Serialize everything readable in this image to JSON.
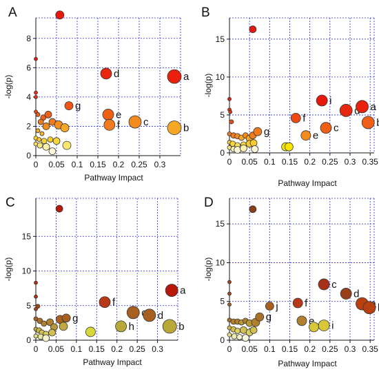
{
  "figure": {
    "background": "#ffffff",
    "grid_color": "#2a2ad8",
    "axis_color": "#111111"
  },
  "chart_data": [
    {
      "type": "scatter",
      "panel_label": "A",
      "xlabel": "Pathway Impact",
      "ylabel": "-log(p)",
      "xlim": [
        0,
        0.35
      ],
      "ylim": [
        0,
        9.4
      ],
      "xticks": [
        "0",
        "0.05",
        "0.1",
        "0.15",
        "0.2",
        "0.25",
        "0.3"
      ],
      "xtick_values": [
        0,
        0.05,
        0.1,
        0.15,
        0.2,
        0.25,
        0.3
      ],
      "yticks": [
        "0",
        "2",
        "4",
        "6",
        "8"
      ],
      "ytick_values": [
        0,
        2,
        4,
        6,
        8
      ],
      "grid": true,
      "points": [
        {
          "x": 0.058,
          "y": 9.6,
          "r": 6,
          "color": "#e8180c",
          "label": ""
        },
        {
          "x": 0.0,
          "y": 6.6,
          "r": 2.5,
          "color": "#e8180c",
          "label": ""
        },
        {
          "x": 0.0,
          "y": 4.3,
          "r": 2.5,
          "color": "#e83010",
          "label": ""
        },
        {
          "x": 0.0,
          "y": 4.0,
          "r": 2.5,
          "color": "#e83010",
          "label": ""
        },
        {
          "x": 0.0,
          "y": 3.0,
          "r": 2.5,
          "color": "#ec4a12",
          "label": ""
        },
        {
          "x": 0.005,
          "y": 2.8,
          "r": 3,
          "color": "#ef6016",
          "label": ""
        },
        {
          "x": 0.018,
          "y": 2.6,
          "r": 4,
          "color": "#ef6016",
          "label": ""
        },
        {
          "x": 0.03,
          "y": 2.8,
          "r": 5,
          "color": "#ef6016",
          "label": ""
        },
        {
          "x": 0.012,
          "y": 2.3,
          "r": 4,
          "color": "#f07a1c",
          "label": ""
        },
        {
          "x": 0.025,
          "y": 2.0,
          "r": 5,
          "color": "#f28a1e",
          "label": ""
        },
        {
          "x": 0.04,
          "y": 2.3,
          "r": 5,
          "color": "#f07a1c",
          "label": ""
        },
        {
          "x": 0.005,
          "y": 1.7,
          "r": 3,
          "color": "#f5a825",
          "label": ""
        },
        {
          "x": 0.015,
          "y": 1.5,
          "r": 3,
          "color": "#f5b52a",
          "label": ""
        },
        {
          "x": 0.0,
          "y": 1.2,
          "r": 3,
          "color": "#f8cc30",
          "label": ""
        },
        {
          "x": 0.008,
          "y": 1.1,
          "r": 3,
          "color": "#f8cc30",
          "label": ""
        },
        {
          "x": 0.02,
          "y": 1.0,
          "r": 4,
          "color": "#f9d63a",
          "label": ""
        },
        {
          "x": 0.035,
          "y": 1.1,
          "r": 4,
          "color": "#f8cc30",
          "label": ""
        },
        {
          "x": 0.05,
          "y": 1.0,
          "r": 5,
          "color": "#f9d63a",
          "label": ""
        },
        {
          "x": 0.0,
          "y": 0.8,
          "r": 3,
          "color": "#fbe060",
          "label": ""
        },
        {
          "x": 0.01,
          "y": 0.7,
          "r": 4,
          "color": "#fce880",
          "label": ""
        },
        {
          "x": 0.025,
          "y": 0.6,
          "r": 5,
          "color": "#fdf2b0",
          "label": ""
        },
        {
          "x": 0.04,
          "y": 0.3,
          "r": 5,
          "color": "#fef8d8",
          "label": ""
        },
        {
          "x": 0.055,
          "y": 2.1,
          "r": 6,
          "color": "#f2901e",
          "label": ""
        },
        {
          "x": 0.07,
          "y": 1.9,
          "r": 6,
          "color": "#f5a825",
          "label": ""
        },
        {
          "x": 0.075,
          "y": 0.7,
          "r": 6,
          "color": "#fbe570",
          "label": ""
        },
        {
          "x": 0.08,
          "y": 3.4,
          "r": 6,
          "color": "#ef5514",
          "label": "g"
        },
        {
          "x": 0.17,
          "y": 5.6,
          "r": 8,
          "color": "#e8280e",
          "label": "d"
        },
        {
          "x": 0.175,
          "y": 2.8,
          "r": 8,
          "color": "#ef6016",
          "label": "e"
        },
        {
          "x": 0.178,
          "y": 2.1,
          "r": 8,
          "color": "#f07a1c",
          "label": "f"
        },
        {
          "x": 0.24,
          "y": 2.3,
          "r": 9,
          "color": "#f28a1e",
          "label": "c"
        },
        {
          "x": 0.335,
          "y": 5.4,
          "r": 10,
          "color": "#e8200c",
          "label": "a"
        },
        {
          "x": 0.335,
          "y": 1.9,
          "r": 10,
          "color": "#f5a825",
          "label": "b"
        }
      ]
    },
    {
      "type": "scatter",
      "panel_label": "B",
      "xlabel": "Pathway Impact",
      "ylabel": "-log(p)",
      "xlim": [
        0,
        0.36
      ],
      "ylim": [
        0,
        17.8
      ],
      "xticks": [
        "0",
        "0.05",
        "0.1",
        "0.15",
        "0.2",
        "0.25",
        "0.3",
        "0.35"
      ],
      "xtick_values": [
        0,
        0.05,
        0.1,
        0.15,
        0.2,
        0.25,
        0.3,
        0.35
      ],
      "yticks": [
        "0",
        "5",
        "10",
        "15"
      ],
      "ytick_values": [
        0,
        5,
        10,
        15
      ],
      "grid": true,
      "points": [
        {
          "x": 0.058,
          "y": 16.3,
          "r": 5,
          "color": "#e8180c",
          "label": ""
        },
        {
          "x": 0.0,
          "y": 7.1,
          "r": 2.5,
          "color": "#e8180c",
          "label": ""
        },
        {
          "x": 0.0,
          "y": 5.7,
          "r": 2.5,
          "color": "#e83010",
          "label": ""
        },
        {
          "x": 0.002,
          "y": 5.4,
          "r": 2.5,
          "color": "#e83010",
          "label": ""
        },
        {
          "x": 0.005,
          "y": 4.1,
          "r": 3,
          "color": "#ec4a12",
          "label": ""
        },
        {
          "x": 0.0,
          "y": 2.5,
          "r": 3,
          "color": "#f07a1c",
          "label": ""
        },
        {
          "x": 0.01,
          "y": 2.3,
          "r": 4,
          "color": "#f07a1c",
          "label": ""
        },
        {
          "x": 0.02,
          "y": 2.2,
          "r": 4,
          "color": "#f28a1e",
          "label": ""
        },
        {
          "x": 0.03,
          "y": 2.0,
          "r": 4,
          "color": "#f5a825",
          "label": ""
        },
        {
          "x": 0.04,
          "y": 2.3,
          "r": 4,
          "color": "#f28a1e",
          "label": ""
        },
        {
          "x": 0.05,
          "y": 1.9,
          "r": 5,
          "color": "#f5a825",
          "label": ""
        },
        {
          "x": 0.058,
          "y": 2.3,
          "r": 5,
          "color": "#f07a1c",
          "label": ""
        },
        {
          "x": 0.0,
          "y": 1.4,
          "r": 3,
          "color": "#f8cc30",
          "label": ""
        },
        {
          "x": 0.008,
          "y": 1.2,
          "r": 4,
          "color": "#f9d63a",
          "label": ""
        },
        {
          "x": 0.02,
          "y": 1.0,
          "r": 4,
          "color": "#fbe060",
          "label": ""
        },
        {
          "x": 0.035,
          "y": 1.1,
          "r": 4,
          "color": "#f9d63a",
          "label": ""
        },
        {
          "x": 0.05,
          "y": 1.2,
          "r": 5,
          "color": "#f8cc30",
          "label": ""
        },
        {
          "x": 0.06,
          "y": 1.3,
          "r": 5,
          "color": "#f8cc30",
          "label": ""
        },
        {
          "x": 0.0,
          "y": 0.7,
          "r": 3,
          "color": "#fce880",
          "label": ""
        },
        {
          "x": 0.01,
          "y": 0.5,
          "r": 4,
          "color": "#fdf2b0",
          "label": ""
        },
        {
          "x": 0.02,
          "y": 0.4,
          "r": 5,
          "color": "#fef8d8",
          "label": ""
        },
        {
          "x": 0.035,
          "y": 0.6,
          "r": 5,
          "color": "#fdf2b0",
          "label": ""
        },
        {
          "x": 0.063,
          "y": 0.5,
          "r": 5,
          "color": "#fef8d8",
          "label": ""
        },
        {
          "x": 0.07,
          "y": 2.8,
          "r": 6,
          "color": "#f07a1c",
          "label": "g"
        },
        {
          "x": 0.14,
          "y": 0.8,
          "r": 6,
          "color": "#f9e400",
          "label": ""
        },
        {
          "x": 0.148,
          "y": 0.8,
          "r": 6,
          "color": "#f9e400",
          "label": ""
        },
        {
          "x": 0.165,
          "y": 4.6,
          "r": 7,
          "color": "#ec4a12",
          "label": "f"
        },
        {
          "x": 0.19,
          "y": 2.3,
          "r": 7,
          "color": "#f28a1e",
          "label": "e"
        },
        {
          "x": 0.23,
          "y": 6.9,
          "r": 8,
          "color": "#e8180c",
          "label": "i"
        },
        {
          "x": 0.24,
          "y": 3.3,
          "r": 8,
          "color": "#ef6016",
          "label": "c"
        },
        {
          "x": 0.29,
          "y": 5.6,
          "r": 9,
          "color": "#e8280e",
          "label": "d"
        },
        {
          "x": 0.33,
          "y": 6.1,
          "r": 9,
          "color": "#e8200c",
          "label": "a"
        },
        {
          "x": 0.345,
          "y": 4.0,
          "r": 9,
          "color": "#ef6016",
          "label": "b"
        }
      ]
    },
    {
      "type": "scatter",
      "panel_label": "C",
      "xlabel": "Pathway Impact",
      "ylabel": "-log(p)",
      "xlim": [
        0,
        0.35
      ],
      "ylim": [
        0,
        20.5
      ],
      "xticks": [
        "0",
        "0.05",
        "0.1",
        "0.15",
        "0.2",
        "0.25",
        "0.3"
      ],
      "xtick_values": [
        0,
        0.05,
        0.1,
        0.15,
        0.2,
        0.25,
        0.3
      ],
      "yticks": [
        "0",
        "5",
        "10",
        "15"
      ],
      "ytick_values": [
        0,
        5,
        10,
        15
      ],
      "grid": true,
      "points": [
        {
          "x": 0.058,
          "y": 19.0,
          "r": 5,
          "color": "#b81808",
          "label": ""
        },
        {
          "x": 0.0,
          "y": 8.3,
          "r": 2.5,
          "color": "#b03010",
          "label": ""
        },
        {
          "x": 0.0,
          "y": 6.3,
          "r": 2.5,
          "color": "#b03010",
          "label": ""
        },
        {
          "x": 0.0,
          "y": 4.5,
          "r": 2.5,
          "color": "#a84418",
          "label": ""
        },
        {
          "x": 0.005,
          "y": 4.9,
          "r": 3,
          "color": "#a84418",
          "label": ""
        },
        {
          "x": 0.0,
          "y": 3.1,
          "r": 3,
          "color": "#a86020",
          "label": ""
        },
        {
          "x": 0.01,
          "y": 2.8,
          "r": 4,
          "color": "#a87028",
          "label": ""
        },
        {
          "x": 0.02,
          "y": 2.4,
          "r": 4,
          "color": "#b08030",
          "label": ""
        },
        {
          "x": 0.035,
          "y": 2.6,
          "r": 5,
          "color": "#b08030",
          "label": ""
        },
        {
          "x": 0.045,
          "y": 1.9,
          "r": 5,
          "color": "#b89838",
          "label": ""
        },
        {
          "x": 0.0,
          "y": 1.6,
          "r": 3,
          "color": "#c0a840",
          "label": ""
        },
        {
          "x": 0.008,
          "y": 1.4,
          "r": 4,
          "color": "#c8b848",
          "label": ""
        },
        {
          "x": 0.015,
          "y": 1.1,
          "r": 4,
          "color": "#d0c050",
          "label": ""
        },
        {
          "x": 0.025,
          "y": 0.9,
          "r": 4,
          "color": "#d8d060",
          "label": ""
        },
        {
          "x": 0.04,
          "y": 1.1,
          "r": 5,
          "color": "#d0c050",
          "label": ""
        },
        {
          "x": 0.0,
          "y": 0.6,
          "r": 3,
          "color": "#e0e080",
          "label": ""
        },
        {
          "x": 0.012,
          "y": 0.5,
          "r": 4,
          "color": "#e8e8a0",
          "label": ""
        },
        {
          "x": 0.025,
          "y": 0.3,
          "r": 5,
          "color": "#f4f4d0",
          "label": ""
        },
        {
          "x": 0.06,
          "y": 3.0,
          "r": 6,
          "color": "#a86020",
          "label": ""
        },
        {
          "x": 0.068,
          "y": 2.0,
          "r": 6,
          "color": "#c0a840",
          "label": ""
        },
        {
          "x": 0.075,
          "y": 3.2,
          "r": 6,
          "color": "#a86020",
          "label": "g"
        },
        {
          "x": 0.135,
          "y": 1.2,
          "r": 7,
          "color": "#d8d838",
          "label": ""
        },
        {
          "x": 0.17,
          "y": 5.5,
          "r": 8,
          "color": "#b83818",
          "label": "f"
        },
        {
          "x": 0.21,
          "y": 2.0,
          "r": 8,
          "color": "#b8a838",
          "label": "h"
        },
        {
          "x": 0.24,
          "y": 4.0,
          "r": 9,
          "color": "#a86020",
          "label": "c"
        },
        {
          "x": 0.28,
          "y": 3.6,
          "r": 9,
          "color": "#a86020",
          "label": "d"
        },
        {
          "x": 0.335,
          "y": 7.2,
          "r": 9,
          "color": "#b81808",
          "label": "a"
        },
        {
          "x": 0.33,
          "y": 2.0,
          "r": 10,
          "color": "#b8a838",
          "label": "b"
        }
      ]
    },
    {
      "type": "scatter",
      "panel_label": "D",
      "xlabel": "Pathway Impact",
      "ylabel": "-log(p)",
      "xlim": [
        0,
        0.36
      ],
      "ylim": [
        0,
        18.3
      ],
      "xticks": [
        "0",
        "0.05",
        "0.1",
        "0.15",
        "0.2",
        "0.25",
        "0.3",
        "0.35"
      ],
      "xtick_values": [
        0,
        0.05,
        0.1,
        0.15,
        0.2,
        0.25,
        0.3,
        0.35
      ],
      "yticks": [
        "0",
        "5",
        "10",
        "15"
      ],
      "ytick_values": [
        0,
        5,
        10,
        15
      ],
      "grid": true,
      "points": [
        {
          "x": 0.058,
          "y": 16.9,
          "r": 5,
          "color": "#884018",
          "label": ""
        },
        {
          "x": 0.0,
          "y": 7.5,
          "r": 2.5,
          "color": "#a84418",
          "label": ""
        },
        {
          "x": 0.0,
          "y": 6.0,
          "r": 2.5,
          "color": "#a84418",
          "label": ""
        },
        {
          "x": 0.0,
          "y": 4.6,
          "r": 2.5,
          "color": "#a06020",
          "label": ""
        },
        {
          "x": 0.0,
          "y": 2.6,
          "r": 3,
          "color": "#a87028",
          "label": ""
        },
        {
          "x": 0.01,
          "y": 2.4,
          "r": 4,
          "color": "#b08030",
          "label": ""
        },
        {
          "x": 0.02,
          "y": 2.4,
          "r": 4,
          "color": "#b08030",
          "label": ""
        },
        {
          "x": 0.03,
          "y": 2.3,
          "r": 4,
          "color": "#b89838",
          "label": ""
        },
        {
          "x": 0.04,
          "y": 2.5,
          "r": 4,
          "color": "#b08030",
          "label": ""
        },
        {
          "x": 0.05,
          "y": 2.2,
          "r": 5,
          "color": "#b89838",
          "label": ""
        },
        {
          "x": 0.0,
          "y": 1.6,
          "r": 3,
          "color": "#c8b848",
          "label": ""
        },
        {
          "x": 0.01,
          "y": 1.4,
          "r": 4,
          "color": "#d0c050",
          "label": ""
        },
        {
          "x": 0.02,
          "y": 1.2,
          "r": 4,
          "color": "#d8d060",
          "label": ""
        },
        {
          "x": 0.035,
          "y": 1.3,
          "r": 5,
          "color": "#d0c050",
          "label": ""
        },
        {
          "x": 0.05,
          "y": 1.0,
          "r": 5,
          "color": "#d8d060",
          "label": ""
        },
        {
          "x": 0.06,
          "y": 1.3,
          "r": 5,
          "color": "#d0c050",
          "label": ""
        },
        {
          "x": 0.0,
          "y": 0.7,
          "r": 3,
          "color": "#e0e080",
          "label": ""
        },
        {
          "x": 0.012,
          "y": 0.5,
          "r": 4,
          "color": "#ececb0",
          "label": ""
        },
        {
          "x": 0.025,
          "y": 0.4,
          "r": 4,
          "color": "#f4f4d0",
          "label": ""
        },
        {
          "x": 0.04,
          "y": 0.3,
          "r": 5,
          "color": "#f8f8e0",
          "label": ""
        },
        {
          "x": 0.065,
          "y": 2.3,
          "r": 6,
          "color": "#b08030",
          "label": ""
        },
        {
          "x": 0.075,
          "y": 3.0,
          "r": 6,
          "color": "#a87028",
          "label": "g"
        },
        {
          "x": 0.1,
          "y": 4.4,
          "r": 6,
          "color": "#a86020",
          "label": "j"
        },
        {
          "x": 0.17,
          "y": 4.8,
          "r": 7,
          "color": "#b83818",
          "label": "f"
        },
        {
          "x": 0.18,
          "y": 2.5,
          "r": 7,
          "color": "#b08030",
          "label": "e"
        },
        {
          "x": 0.21,
          "y": 1.7,
          "r": 7,
          "color": "#d8c838",
          "label": "h"
        },
        {
          "x": 0.235,
          "y": 7.2,
          "r": 8,
          "color": "#a83018",
          "label": "c"
        },
        {
          "x": 0.235,
          "y": 1.9,
          "r": 8,
          "color": "#d8c838",
          "label": "i"
        },
        {
          "x": 0.29,
          "y": 6.0,
          "r": 8,
          "color": "#984018",
          "label": "d"
        },
        {
          "x": 0.33,
          "y": 4.7,
          "r": 9,
          "color": "#b84010",
          "label": "a"
        },
        {
          "x": 0.348,
          "y": 4.2,
          "r": 9,
          "color": "#b84010",
          "label": "b"
        }
      ]
    }
  ]
}
